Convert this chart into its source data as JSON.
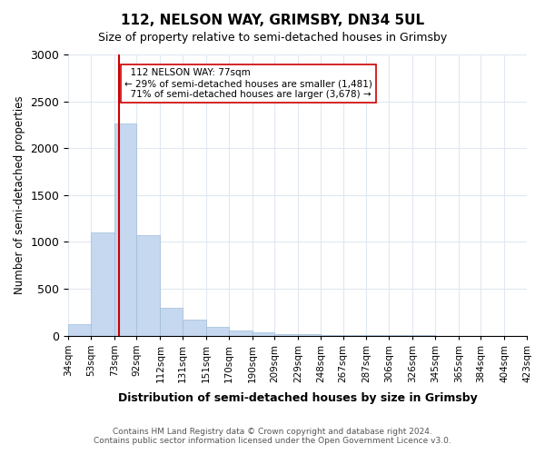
{
  "title": "112, NELSON WAY, GRIMSBY, DN34 5UL",
  "subtitle": "Size of property relative to semi-detached houses in Grimsby",
  "xlabel": "Distribution of semi-detached houses by size in Grimsby",
  "ylabel": "Number of semi-detached properties",
  "property_label": "112 NELSON WAY: 77sqm",
  "smaller_pct": "29%",
  "smaller_count": "1,481",
  "larger_pct": "71%",
  "larger_count": "3,678",
  "property_size": 77,
  "bin_edges": [
    34,
    53,
    73,
    92,
    112,
    131,
    151,
    170,
    190,
    209,
    229,
    248,
    267,
    287,
    306,
    326,
    345,
    365,
    384,
    404,
    423
  ],
  "bin_labels": [
    "34sqm",
    "53sqm",
    "73sqm",
    "92sqm",
    "112sqm",
    "131sqm",
    "151sqm",
    "170sqm",
    "190sqm",
    "209sqm",
    "229sqm",
    "248sqm",
    "267sqm",
    "287sqm",
    "306sqm",
    "326sqm",
    "345sqm",
    "365sqm",
    "384sqm",
    "404sqm",
    "423sqm"
  ],
  "counts": [
    120,
    1100,
    2260,
    1070,
    300,
    175,
    90,
    55,
    35,
    20,
    15,
    10,
    8,
    5,
    4,
    3,
    2,
    2,
    1,
    1
  ],
  "bar_color": "#c5d8f0",
  "bar_edge_color": "#a0bcd8",
  "grid_color": "#e0e8f0",
  "property_line_color": "#cc0000",
  "annotation_box_color": "#ffffff",
  "annotation_box_edge": "#cc0000",
  "ylim": [
    0,
    3000
  ],
  "yticks": [
    0,
    500,
    1000,
    1500,
    2000,
    2500,
    3000
  ],
  "footer_line1": "Contains HM Land Registry data © Crown copyright and database right 2024.",
  "footer_line2": "Contains public sector information licensed under the Open Government Licence v3.0."
}
